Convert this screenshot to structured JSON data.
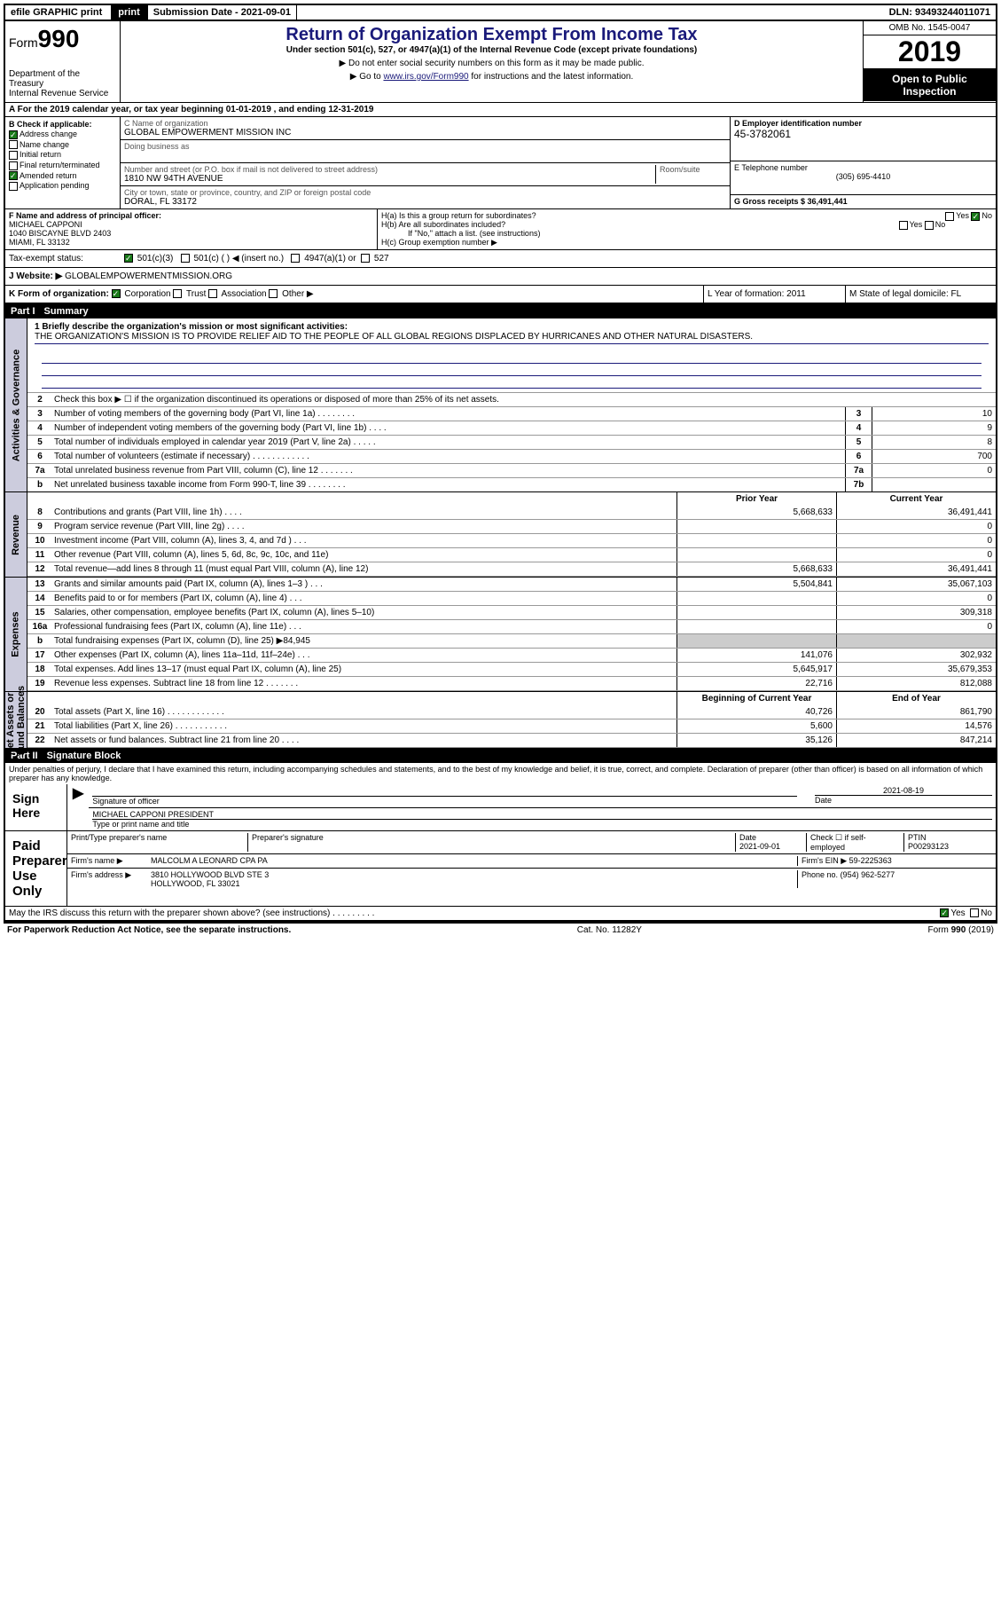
{
  "topbar": {
    "efile": "efile GRAPHIC print",
    "submission_label": "Submission Date - 2021-09-01",
    "dln": "DLN: 93493244011071"
  },
  "header": {
    "form_label": "Form",
    "form_num": "990",
    "dept": "Department of the Treasury\nInternal Revenue Service",
    "title": "Return of Organization Exempt From Income Tax",
    "sub1": "Under section 501(c), 527, or 4947(a)(1) of the Internal Revenue Code (except private foundations)",
    "sub2": "▶ Do not enter social security numbers on this form as it may be made public.",
    "sub3_prefix": "▶ Go to ",
    "sub3_link": "www.irs.gov/Form990",
    "sub3_suffix": " for instructions and the latest information.",
    "omb": "OMB No. 1545-0047",
    "year": "2019",
    "inspect": "Open to Public Inspection"
  },
  "row_a": {
    "text": "A For the 2019 calendar year, or tax year beginning 01-01-2019    , and ending 12-31-2019"
  },
  "col_b": {
    "label": "B Check if applicable:",
    "items": [
      {
        "label": "Address change",
        "checked": true
      },
      {
        "label": "Name change",
        "checked": false
      },
      {
        "label": "Initial return",
        "checked": false
      },
      {
        "label": "Final return/terminated",
        "checked": false
      },
      {
        "label": "Amended return",
        "checked": true
      },
      {
        "label": "Application pending",
        "checked": false
      }
    ]
  },
  "col_c": {
    "name_label": "C Name of organization",
    "name": "GLOBAL EMPOWERMENT MISSION INC",
    "dba_label": "Doing business as",
    "dba": "",
    "addr_label": "Number and street (or P.O. box if mail is not delivered to street address)",
    "room_label": "Room/suite",
    "addr": "1810 NW 94TH AVENUE",
    "city_label": "City or town, state or province, country, and ZIP or foreign postal code",
    "city": "DORAL, FL  33172"
  },
  "col_d": {
    "label": "D Employer identification number",
    "ein": "45-3782061",
    "phone_label": "E Telephone number",
    "phone": "(305) 695-4410",
    "gross_label": "G Gross receipts $ 36,491,441"
  },
  "row_f": {
    "f_label": "F  Name and address of principal officer:",
    "f_name": "MICHAEL CAPPONI",
    "f_addr1": "1040 BISCAYNE BLVD 2403",
    "f_addr2": "MIAMI, FL  33132",
    "ha_label": "H(a)  Is this a group return for subordinates?",
    "hb_label": "H(b)  Are all subordinates included?",
    "hb_note": "If \"No,\" attach a list. (see instructions)",
    "hc_label": "H(c)  Group exemption number ▶"
  },
  "tax_status": {
    "label": "Tax-exempt status:",
    "opt1": "501(c)(3)",
    "opt2": "501(c) (   ) ◀ (insert no.)",
    "opt3": "4947(a)(1) or",
    "opt4": "527"
  },
  "website": {
    "label": "J    Website: ▶",
    "val": "GLOBALEMPOWERMENTMISSION.ORG"
  },
  "row_k": {
    "k_label": "K Form of organization:",
    "k_corp": "Corporation",
    "k_trust": "Trust",
    "k_assoc": "Association",
    "k_other": "Other ▶",
    "l_label": "L Year of formation: 2011",
    "m_label": "M State of legal domicile: FL"
  },
  "part1": {
    "label": "Part I",
    "title": "Summary",
    "q1_label": "1  Briefly describe the organization's mission or most significant activities:",
    "q1_text": "THE ORGANIZATION'S MISSION IS TO PROVIDE RELIEF AID TO THE PEOPLE OF ALL GLOBAL REGIONS DISPLACED BY HURRICANES AND OTHER NATURAL DISASTERS.",
    "q2": "Check this box ▶ ☐  if the organization discontinued its operations or disposed of more than 25% of its net assets."
  },
  "governance_lines": [
    {
      "num": "3",
      "desc": "Number of voting members of the governing body (Part VI, line 1a)  .   .   .   .   .   .   .   .",
      "box": "3",
      "val": "10"
    },
    {
      "num": "4",
      "desc": "Number of independent voting members of the governing body (Part VI, line 1b)  .   .   .   .",
      "box": "4",
      "val": "9"
    },
    {
      "num": "5",
      "desc": "Total number of individuals employed in calendar year 2019 (Part V, line 2a)  .   .   .   .   .",
      "box": "5",
      "val": "8"
    },
    {
      "num": "6",
      "desc": "Total number of volunteers (estimate if necessary)   .   .   .   .   .   .   .   .   .   .   .   .",
      "box": "6",
      "val": "700"
    },
    {
      "num": "7a",
      "desc": "Total unrelated business revenue from Part VIII, column (C), line 12  .   .   .   .   .   .   .",
      "box": "7a",
      "val": "0"
    },
    {
      "num": "b",
      "desc": "Net unrelated business taxable income from Form 990-T, line 39   .   .   .   .   .   .   .   .",
      "box": "7b",
      "val": ""
    }
  ],
  "col_headers": {
    "prior": "Prior Year",
    "current": "Current Year"
  },
  "revenue_lines": [
    {
      "num": "8",
      "desc": "Contributions and grants (Part VIII, line 1h)   .   .   .   .",
      "v1": "5,668,633",
      "v2": "36,491,441"
    },
    {
      "num": "9",
      "desc": "Program service revenue (Part VIII, line 2g)  .   .   .   .",
      "v1": "",
      "v2": "0"
    },
    {
      "num": "10",
      "desc": "Investment income (Part VIII, column (A), lines 3, 4, and 7d )  .   .   .",
      "v1": "",
      "v2": "0"
    },
    {
      "num": "11",
      "desc": "Other revenue (Part VIII, column (A), lines 5, 6d, 8c, 9c, 10c, and 11e)",
      "v1": "",
      "v2": "0"
    },
    {
      "num": "12",
      "desc": "Total revenue—add lines 8 through 11 (must equal Part VIII, column (A), line 12)",
      "v1": "5,668,633",
      "v2": "36,491,441"
    }
  ],
  "expense_lines": [
    {
      "num": "13",
      "desc": "Grants and similar amounts paid (Part IX, column (A), lines 1–3 )  .   .   .",
      "v1": "5,504,841",
      "v2": "35,067,103"
    },
    {
      "num": "14",
      "desc": "Benefits paid to or for members (Part IX, column (A), line 4)  .   .   .",
      "v1": "",
      "v2": "0"
    },
    {
      "num": "15",
      "desc": "Salaries, other compensation, employee benefits (Part IX, column (A), lines 5–10)",
      "v1": "",
      "v2": "309,318"
    },
    {
      "num": "16a",
      "desc": "Professional fundraising fees (Part IX, column (A), line 11e)  .   .   .",
      "v1": "",
      "v2": "0"
    },
    {
      "num": "b",
      "desc": "Total fundraising expenses (Part IX, column (D), line 25) ▶84,945",
      "v1": "SHADED",
      "v2": "SHADED"
    },
    {
      "num": "17",
      "desc": "Other expenses (Part IX, column (A), lines 11a–11d, 11f–24e)  .   .   .",
      "v1": "141,076",
      "v2": "302,932"
    },
    {
      "num": "18",
      "desc": "Total expenses. Add lines 13–17 (must equal Part IX, column (A), line 25)",
      "v1": "5,645,917",
      "v2": "35,679,353"
    },
    {
      "num": "19",
      "desc": "Revenue less expenses. Subtract line 18 from line 12 .   .   .   .   .   .   .",
      "v1": "22,716",
      "v2": "812,088"
    }
  ],
  "net_headers": {
    "begin": "Beginning of Current Year",
    "end": "End of Year"
  },
  "net_lines": [
    {
      "num": "20",
      "desc": "Total assets (Part X, line 16)  .   .   .   .   .   .   .   .   .   .   .   .",
      "v1": "40,726",
      "v2": "861,790"
    },
    {
      "num": "21",
      "desc": "Total liabilities (Part X, line 26)  .   .   .   .   .   .   .   .   .   .   .",
      "v1": "5,600",
      "v2": "14,576"
    },
    {
      "num": "22",
      "desc": "Net assets or fund balances. Subtract line 21 from line 20  .   .   .   .",
      "v1": "35,126",
      "v2": "847,214"
    }
  ],
  "part2": {
    "label": "Part II",
    "title": "Signature Block",
    "penalties": "Under penalties of perjury, I declare that I have examined this return, including accompanying schedules and statements, and to the best of my knowledge and belief, it is true, correct, and complete. Declaration of preparer (other than officer) is based on all information of which preparer has any knowledge."
  },
  "sign": {
    "here": "Sign Here",
    "sig_label": "Signature of officer",
    "date_label": "Date",
    "date": "2021-08-19",
    "name": "MICHAEL CAPPONI  PRESIDENT",
    "name_label": "Type or print name and title"
  },
  "preparer": {
    "label": "Paid Preparer Use Only",
    "name_label": "Print/Type preparer's name",
    "sig_label": "Preparer's signature",
    "date_label": "Date",
    "date": "2021-09-01",
    "check_label": "Check ☐ if self-employed",
    "ptin_label": "PTIN",
    "ptin": "P00293123",
    "firm_name_label": "Firm's name    ▶",
    "firm_name": "MALCOLM A LEONARD CPA PA",
    "firm_ein_label": "Firm's EIN ▶",
    "firm_ein": "59-2225363",
    "firm_addr_label": "Firm's address ▶",
    "firm_addr1": "3810 HOLLYWOOD BLVD STE 3",
    "firm_addr2": "HOLLYWOOD, FL  33021",
    "phone_label": "Phone no.",
    "phone": "(954) 962-5277"
  },
  "discuss": {
    "text": "May the IRS discuss this return with the preparer shown above? (see instructions)   .   .   .   .   .   .   .   .   .",
    "yes": "Yes",
    "no": "No"
  },
  "footer": {
    "left": "For Paperwork Reduction Act Notice, see the separate instructions.",
    "mid": "Cat. No. 11282Y",
    "right": "Form 990 (2019)"
  }
}
